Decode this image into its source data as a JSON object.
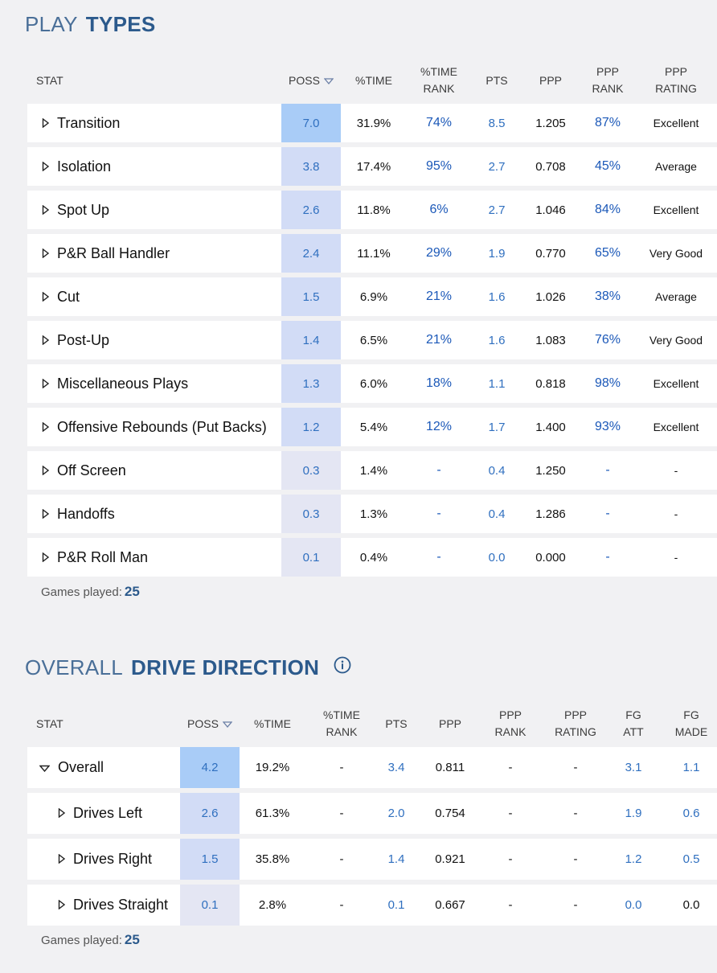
{
  "play_types": {
    "title_light": "PLAY",
    "title_bold": "TYPES",
    "headers": {
      "stat": "STAT",
      "poss": "POSS",
      "pct_time": "%TIME",
      "pct_time_rank_1": "%TIME",
      "pct_time_rank_2": "RANK",
      "pts": "PTS",
      "ppp": "PPP",
      "ppp_rank_1": "PPP",
      "ppp_rank_2": "RANK",
      "ppp_rating_1": "PPP",
      "ppp_rating_2": "RATING"
    },
    "rows": [
      {
        "name": "Transition",
        "poss": "7.0",
        "pct_time": "31.9%",
        "pct_time_rank": "74%",
        "pts": "8.5",
        "ppp": "1.205",
        "ppp_rank": "87%",
        "ppp_rating": "Excellent"
      },
      {
        "name": "Isolation",
        "poss": "3.8",
        "pct_time": "17.4%",
        "pct_time_rank": "95%",
        "pts": "2.7",
        "ppp": "0.708",
        "ppp_rank": "45%",
        "ppp_rating": "Average"
      },
      {
        "name": "Spot Up",
        "poss": "2.6",
        "pct_time": "11.8%",
        "pct_time_rank": "6%",
        "pts": "2.7",
        "ppp": "1.046",
        "ppp_rank": "84%",
        "ppp_rating": "Excellent"
      },
      {
        "name": "P&R Ball Handler",
        "poss": "2.4",
        "pct_time": "11.1%",
        "pct_time_rank": "29%",
        "pts": "1.9",
        "ppp": "0.770",
        "ppp_rank": "65%",
        "ppp_rating": "Very Good"
      },
      {
        "name": "Cut",
        "poss": "1.5",
        "pct_time": "6.9%",
        "pct_time_rank": "21%",
        "pts": "1.6",
        "ppp": "1.026",
        "ppp_rank": "38%",
        "ppp_rating": "Average"
      },
      {
        "name": "Post-Up",
        "poss": "1.4",
        "pct_time": "6.5%",
        "pct_time_rank": "21%",
        "pts": "1.6",
        "ppp": "1.083",
        "ppp_rank": "76%",
        "ppp_rating": "Very Good"
      },
      {
        "name": "Miscellaneous Plays",
        "poss": "1.3",
        "pct_time": "6.0%",
        "pct_time_rank": "18%",
        "pts": "1.1",
        "ppp": "0.818",
        "ppp_rank": "98%",
        "ppp_rating": "Excellent"
      },
      {
        "name": "Offensive Rebounds (Put Backs)",
        "poss": "1.2",
        "pct_time": "5.4%",
        "pct_time_rank": "12%",
        "pts": "1.7",
        "ppp": "1.400",
        "ppp_rank": "93%",
        "ppp_rating": "Excellent"
      },
      {
        "name": "Off Screen",
        "poss": "0.3",
        "pct_time": "1.4%",
        "pct_time_rank": "-",
        "pts": "0.4",
        "ppp": "1.250",
        "ppp_rank": "-",
        "ppp_rating": "-"
      },
      {
        "name": "Handoffs",
        "poss": "0.3",
        "pct_time": "1.3%",
        "pct_time_rank": "-",
        "pts": "0.4",
        "ppp": "1.286",
        "ppp_rank": "-",
        "ppp_rating": "-"
      },
      {
        "name": "P&R Roll Man",
        "poss": "0.1",
        "pct_time": "0.4%",
        "pct_time_rank": "-",
        "pts": "0.0",
        "ppp": "0.000",
        "ppp_rank": "-",
        "ppp_rating": "-"
      }
    ],
    "games_played_label": "Games played:",
    "games_played_value": "25"
  },
  "drive_direction": {
    "title_light": "OVERALL",
    "title_bold": "DRIVE DIRECTION",
    "info_icon": "info-circle-icon",
    "headers": {
      "stat": "STAT",
      "poss": "POSS",
      "pct_time": "%TIME",
      "pct_time_rank_1": "%TIME",
      "pct_time_rank_2": "RANK",
      "pts": "PTS",
      "ppp": "PPP",
      "ppp_rank_1": "PPP",
      "ppp_rank_2": "RANK",
      "ppp_rating_1": "PPP",
      "ppp_rating_2": "RATING",
      "fg_att_1": "FG",
      "fg_att_2": "ATT",
      "fg_made_1": "FG",
      "fg_made_2": "MADE"
    },
    "rows": [
      {
        "name": "Overall",
        "poss": "4.2",
        "pct_time": "19.2%",
        "pct_time_rank": "-",
        "pts": "3.4",
        "ppp": "0.811",
        "ppp_rank": "-",
        "ppp_rating": "-",
        "fg_att": "3.1",
        "fg_made": "1.1"
      },
      {
        "name": "Drives Left",
        "poss": "2.6",
        "pct_time": "61.3%",
        "pct_time_rank": "-",
        "pts": "2.0",
        "ppp": "0.754",
        "ppp_rank": "-",
        "ppp_rating": "-",
        "fg_att": "1.9",
        "fg_made": "0.6"
      },
      {
        "name": "Drives Right",
        "poss": "1.5",
        "pct_time": "35.8%",
        "pct_time_rank": "-",
        "pts": "1.4",
        "ppp": "0.921",
        "ppp_rank": "-",
        "ppp_rating": "-",
        "fg_att": "1.2",
        "fg_made": "0.5"
      },
      {
        "name": "Drives Straight",
        "poss": "0.1",
        "pct_time": "2.8%",
        "pct_time_rank": "-",
        "pts": "0.1",
        "ppp": "0.667",
        "ppp_rank": "-",
        "ppp_rating": "-",
        "fg_att": "0.0",
        "fg_made": "0.0"
      }
    ],
    "games_played_label": "Games played:",
    "games_played_value": "25"
  },
  "colors": {
    "poss_high": "#a9ccf7",
    "poss_mid": "#d2dcf6",
    "poss_low": "#e4e6f3",
    "rank_blue": "#1b58b8",
    "title_blue": "#2c5a8c"
  }
}
